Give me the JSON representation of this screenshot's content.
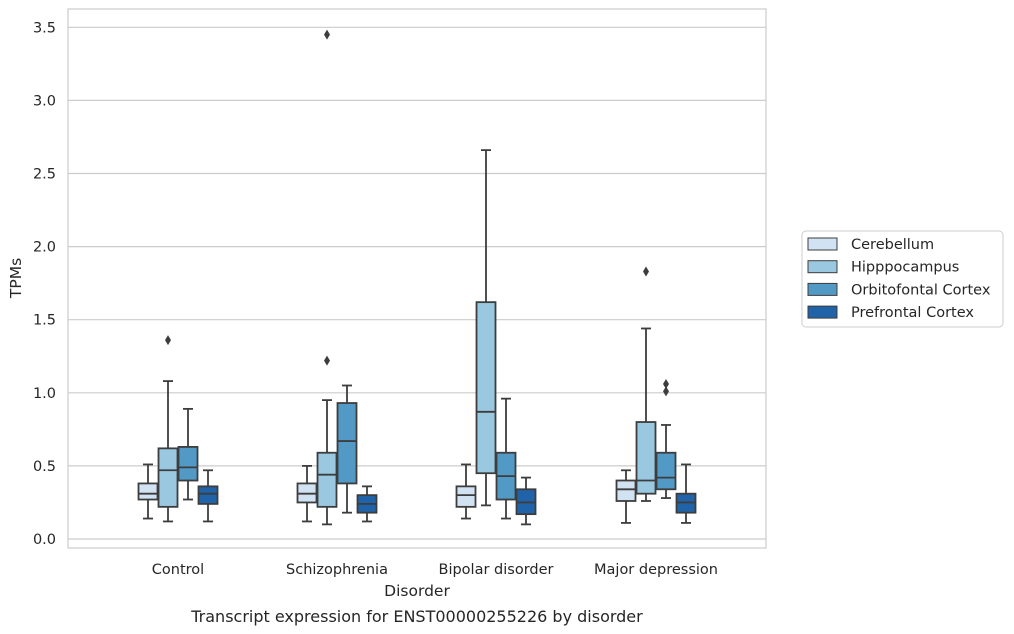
{
  "caption": "Transcript expression for ENST00000255226 by disorder",
  "chart_data": {
    "type": "box",
    "title": "",
    "xlabel": "Disorder",
    "ylabel": "TPMs",
    "ylim": [
      -0.05,
      3.62
    ],
    "yticks": [
      "0.0",
      "0.5",
      "1.0",
      "1.5",
      "2.0",
      "2.5",
      "3.0",
      "3.5"
    ],
    "grid": "horizontal",
    "legend_position": "right",
    "categories": [
      "Control",
      "Schizophrenia",
      "Bipolar disorder",
      "Major depression"
    ],
    "series": [
      {
        "name": "Cerebellum",
        "color": "#d1e2f2",
        "boxes": [
          {
            "whislo": 0.14,
            "q1": 0.27,
            "med": 0.31,
            "q3": 0.38,
            "whishi": 0.51,
            "fliers": []
          },
          {
            "whislo": 0.12,
            "q1": 0.25,
            "med": 0.31,
            "q3": 0.38,
            "whishi": 0.5,
            "fliers": []
          },
          {
            "whislo": 0.14,
            "q1": 0.22,
            "med": 0.3,
            "q3": 0.36,
            "whishi": 0.51,
            "fliers": []
          },
          {
            "whislo": 0.11,
            "q1": 0.26,
            "med": 0.34,
            "q3": 0.4,
            "whishi": 0.47,
            "fliers": []
          }
        ]
      },
      {
        "name": "Hipppocampus",
        "color": "#9ac8e0",
        "boxes": [
          {
            "whislo": 0.12,
            "q1": 0.22,
            "med": 0.47,
            "q3": 0.62,
            "whishi": 1.08,
            "fliers": [
              1.36
            ]
          },
          {
            "whislo": 0.1,
            "q1": 0.22,
            "med": 0.44,
            "q3": 0.59,
            "whishi": 0.95,
            "fliers": [
              1.22,
              3.45
            ]
          },
          {
            "whislo": 0.23,
            "q1": 0.45,
            "med": 0.87,
            "q3": 1.62,
            "whishi": 2.66,
            "fliers": []
          },
          {
            "whislo": 0.26,
            "q1": 0.31,
            "med": 0.4,
            "q3": 0.8,
            "whishi": 1.44,
            "fliers": [
              1.83
            ]
          }
        ]
      },
      {
        "name": "Orbitofontal Cortex",
        "color": "#5299c6",
        "boxes": [
          {
            "whislo": 0.27,
            "q1": 0.4,
            "med": 0.49,
            "q3": 0.63,
            "whishi": 0.89,
            "fliers": []
          },
          {
            "whislo": 0.18,
            "q1": 0.38,
            "med": 0.67,
            "q3": 0.93,
            "whishi": 1.05,
            "fliers": []
          },
          {
            "whislo": 0.14,
            "q1": 0.27,
            "med": 0.43,
            "q3": 0.59,
            "whishi": 0.96,
            "fliers": []
          },
          {
            "whislo": 0.28,
            "q1": 0.34,
            "med": 0.42,
            "q3": 0.59,
            "whishi": 0.78,
            "fliers": [
              1.01,
              1.06
            ]
          }
        ]
      },
      {
        "name": "Prefrontal Cortex",
        "color": "#2163a8",
        "boxes": [
          {
            "whislo": 0.12,
            "q1": 0.24,
            "med": 0.31,
            "q3": 0.36,
            "whishi": 0.47,
            "fliers": []
          },
          {
            "whislo": 0.12,
            "q1": 0.18,
            "med": 0.24,
            "q3": 0.3,
            "whishi": 0.36,
            "fliers": []
          },
          {
            "whislo": 0.1,
            "q1": 0.17,
            "med": 0.25,
            "q3": 0.34,
            "whishi": 0.42,
            "fliers": []
          },
          {
            "whislo": 0.11,
            "q1": 0.18,
            "med": 0.25,
            "q3": 0.31,
            "whishi": 0.51,
            "fliers": []
          }
        ]
      }
    ]
  }
}
